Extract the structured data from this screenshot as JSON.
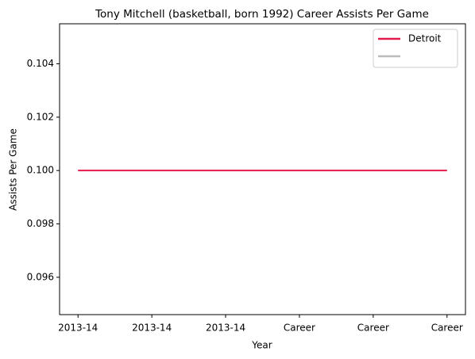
{
  "chart_data": {
    "type": "line",
    "title": "Tony Mitchell (basketball, born 1992) Career Assists Per Game",
    "x_label": "Year",
    "y_label": "Assists Per Game",
    "categories": [
      "2013-14",
      "2013-14",
      "2013-14",
      "Career",
      "Career",
      "Career"
    ],
    "series": [
      {
        "name": "Detroit",
        "color": "#e6194b",
        "values": [
          0.1,
          0.1,
          0.1,
          0.1,
          0.1,
          0.1
        ]
      },
      {
        "color": "#bbbbbb"
      }
    ],
    "ylim": [
      0.0946,
      0.1055
    ],
    "yticks": [
      0.096,
      0.098,
      {
        "value": 0.1,
        "label": "0.100"
      },
      0.102,
      0.104
    ],
    "legend": "upper right",
    "grid": false
  }
}
